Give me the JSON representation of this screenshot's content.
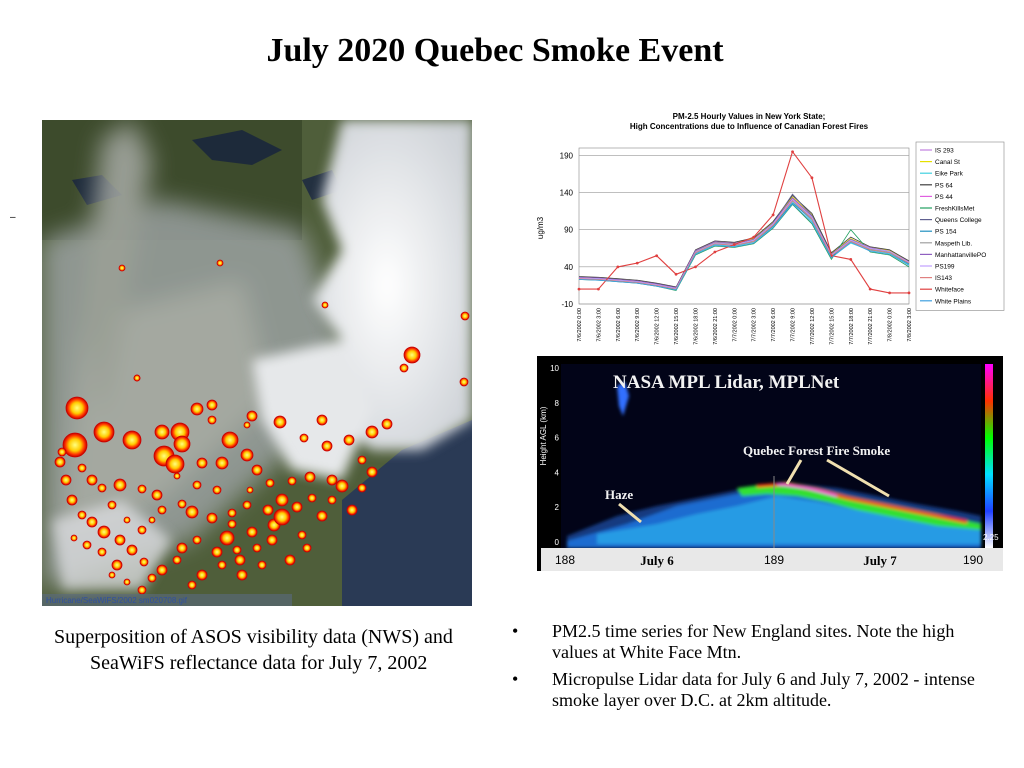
{
  "slide": {
    "title": "July 2020 Quebec Smoke Event",
    "dash": "–"
  },
  "satellite": {
    "caption_overlay": "Hurricane/SeaWiFS/2002 sm020708.gif",
    "caption": "Superposition of ASOS visibility data (NWS) and SeaWiFS reflectance data for July 7, 2002"
  },
  "pm_chart": {
    "title_line1": "PM-2.5 Hourly Values in New York State;",
    "title_line2": "High Concentrations due to Influence of Canadian Forest Fires",
    "chart_data": {
      "type": "line",
      "title": "PM-2.5 Hourly Values in New York State; High Concentrations due to Influence of Canadian Forest Fires",
      "ylabel": "ug/m3",
      "ylim": [
        -10,
        200
      ],
      "yticks": [
        "190",
        "140",
        "90",
        "40",
        "-10"
      ],
      "categories": [
        "7/6/2002 0:00",
        "7/6/2002 3:00",
        "7/6/2002 6:00",
        "7/6/2002 9:00",
        "7/6/2002 12:00",
        "7/6/2002 15:00",
        "7/6/2002 18:00",
        "7/6/2002 21:00",
        "7/7/2002 0:00",
        "7/7/2002 3:00",
        "7/7/2002 6:00",
        "7/7/2002 9:00",
        "7/7/2002 12:00",
        "7/7/2002 15:00",
        "7/7/2002 18:00",
        "7/7/2002 21:00",
        "7/8/2002 0:00",
        "7/8/2002 3:00"
      ],
      "grid": true,
      "legend_position": "right",
      "series": [
        {
          "name": "IS 293",
          "color": "#c080e0",
          "values": [
            25,
            24,
            22,
            20,
            16,
            10,
            60,
            72,
            70,
            75,
            96,
            130,
            105,
            55,
            75,
            64,
            60,
            45
          ]
        },
        {
          "name": "Canal St",
          "color": "#e6e000",
          "values": [
            26,
            25,
            23,
            21,
            17,
            12,
            62,
            74,
            72,
            78,
            100,
            134,
            110,
            58,
            78,
            66,
            62,
            47
          ]
        },
        {
          "name": "Eike Park",
          "color": "#40d0e0",
          "values": [
            24,
            23,
            21,
            19,
            15,
            9,
            58,
            70,
            68,
            73,
            94,
            128,
            102,
            53,
            72,
            62,
            58,
            43
          ]
        },
        {
          "name": "PS 64",
          "color": "#404040",
          "values": [
            27,
            26,
            24,
            22,
            18,
            13,
            63,
            75,
            73,
            79,
            101,
            136,
            112,
            59,
            80,
            67,
            63,
            48
          ]
        },
        {
          "name": "PS 44",
          "color": "#e060e0",
          "values": [
            25,
            25,
            22,
            21,
            16,
            11,
            61,
            73,
            71,
            76,
            98,
            132,
            107,
            56,
            76,
            65,
            61,
            46
          ]
        },
        {
          "name": "FreshKillsMet",
          "color": "#20a060",
          "values": [
            23,
            22,
            20,
            18,
            14,
            8,
            56,
            68,
            66,
            71,
            92,
            124,
            98,
            50,
            90,
            60,
            56,
            40
          ]
        },
        {
          "name": "Queens College",
          "color": "#606090",
          "values": [
            26,
            24,
            23,
            20,
            17,
            12,
            60,
            72,
            70,
            77,
            99,
            138,
            109,
            57,
            77,
            65,
            60,
            45
          ]
        },
        {
          "name": "PS 154",
          "color": "#2090c0",
          "values": [
            24,
            24,
            21,
            20,
            15,
            10,
            59,
            71,
            69,
            74,
            95,
            126,
            104,
            54,
            74,
            63,
            59,
            44
          ]
        },
        {
          "name": "Maspeth Lib.",
          "color": "#a0a0a0",
          "values": [
            25,
            23,
            22,
            19,
            16,
            11,
            61,
            73,
            71,
            75,
            97,
            131,
            106,
            56,
            75,
            64,
            60,
            46
          ]
        },
        {
          "name": "ManhattanvillePO",
          "color": "#9060c0",
          "values": [
            26,
            25,
            23,
            21,
            17,
            12,
            62,
            74,
            72,
            77,
            99,
            133,
            108,
            57,
            77,
            66,
            61,
            47
          ]
        },
        {
          "name": "PS199",
          "color": "#c0a0ff",
          "values": [
            25,
            24,
            22,
            20,
            16,
            11,
            60,
            72,
            70,
            76,
            98,
            131,
            107,
            56,
            76,
            65,
            61,
            46
          ]
        },
        {
          "name": "IS143",
          "color": "#e08080",
          "values": [
            24,
            23,
            21,
            19,
            15,
            10,
            59,
            71,
            69,
            74,
            96,
            129,
            104,
            55,
            74,
            63,
            59,
            45
          ]
        },
        {
          "name": "Whiteface",
          "color": "#e04040",
          "values": [
            10,
            10,
            40,
            45,
            55,
            30,
            40,
            60,
            70,
            80,
            110,
            195,
            160,
            55,
            50,
            10,
            5,
            5
          ]
        },
        {
          "name": "White Plains",
          "color": "#40a0e0",
          "values": [
            23,
            22,
            20,
            18,
            14,
            9,
            57,
            69,
            67,
            72,
            93,
            125,
            100,
            52,
            73,
            61,
            57,
            42
          ]
        }
      ]
    }
  },
  "lidar": {
    "title": "NASA MPL Lidar, MPLNet",
    "smoke_label": "Quebec Forest Fire Smoke",
    "haze_label": "Haze",
    "ylabel": "Height AGL (km)",
    "yticks": [
      "10",
      "8",
      "6",
      "4",
      "2",
      "0"
    ],
    "xticks": [
      "188",
      "189",
      "190"
    ],
    "day_labels": [
      "July 6",
      "July 7"
    ],
    "colorbar_value": "2.25"
  },
  "bullets": [
    "PM2.5 time series for New England sites. Note the high values at White Face Mtn.",
    "Micropulse Lidar data for July 6 and July 7, 2002 - intense smoke layer over D.C. at 2km altitude."
  ],
  "bullet_symbol": "•"
}
